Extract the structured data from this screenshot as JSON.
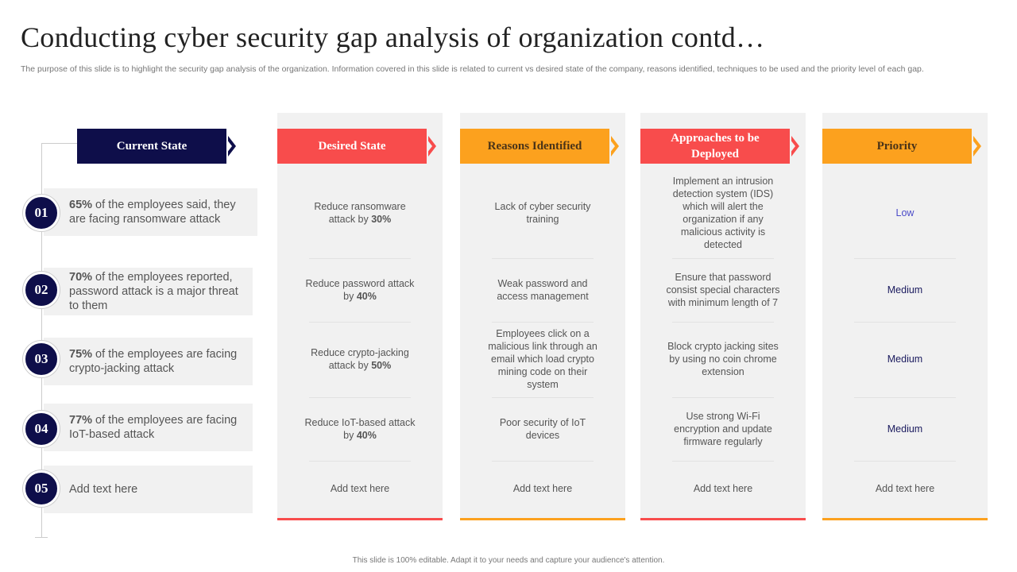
{
  "title": "Conducting cyber security gap analysis of organization contd…",
  "subtitle": "The purpose of this slide is to highlight the security gap analysis of the organization. Information covered in this slide is related to current vs  desired state of the company, reasons identified, techniques to be used and the priority level of each gap.",
  "colors": {
    "navy": "#0e0e4a",
    "red": "#f84c4c",
    "orange": "#fca11e"
  },
  "current_state": {
    "header": "Current State",
    "rows": [
      {
        "num": "01",
        "pct": "65%",
        "text": " of the employees said, they are facing ransomware attack"
      },
      {
        "num": "02",
        "pct": "70%",
        "text": " of the employees reported, password attack is a major threat to them"
      },
      {
        "num": "03",
        "pct": "75%",
        "text": " of the employees are facing crypto-jacking attack"
      },
      {
        "num": "04",
        "pct": "77%",
        "text": " of the employees are facing IoT-based attack"
      },
      {
        "num": "05",
        "pct": "",
        "text": "Add text here"
      }
    ]
  },
  "desired": {
    "header": "Desired State",
    "rows": [
      {
        "text": "Reduce ransomware attack by ",
        "bold": "30%"
      },
      {
        "text": "Reduce password attack  by ",
        "bold": "40%"
      },
      {
        "text": "Reduce crypto-jacking attack by ",
        "bold": "50%"
      },
      {
        "text": "Reduce IoT-based attack by ",
        "bold": "40%"
      },
      {
        "text": "Add text here",
        "bold": ""
      }
    ]
  },
  "reasons": {
    "header": "Reasons Identified",
    "rows": [
      "Lack of cyber security training",
      "Weak password and access management",
      "Employees click on a malicious link through an email which load crypto mining code on their system",
      "Poor security of IoT devices",
      "Add text here"
    ]
  },
  "approaches": {
    "header": "Approaches to be Deployed",
    "rows": [
      "Implement  an intrusion detection system (IDS) which will alert the organization  if any malicious activity is detected",
      "Ensure that password consist special characters with minimum length of 7",
      "Block crypto jacking sites by using no coin chrome extension",
      "Use strong Wi-Fi encryption and update firmware regularly",
      "Add text here"
    ]
  },
  "priority": {
    "header": "Priority",
    "rows": [
      "Low",
      "Medium",
      "Medium",
      "Medium",
      "Add text here"
    ]
  },
  "footer": "This slide is 100% editable.  Adapt it to your needs and capture your audience's attention."
}
